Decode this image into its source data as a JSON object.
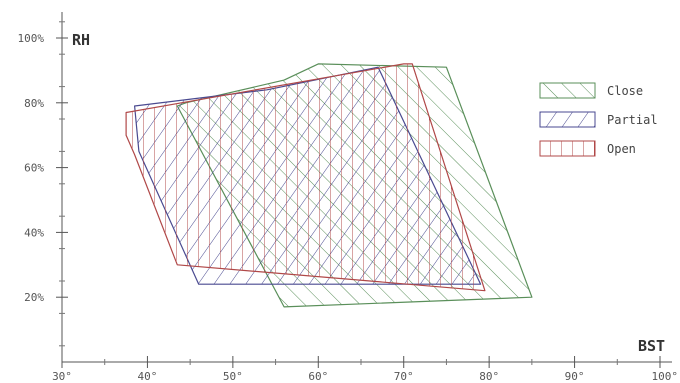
{
  "chart_data": {
    "type": "area",
    "title": "",
    "xlabel": "BST",
    "ylabel": "RH",
    "xlim": [
      30,
      100
    ],
    "ylim": [
      0,
      100
    ],
    "x_ticks": [
      30,
      40,
      50,
      60,
      70,
      80,
      90,
      100
    ],
    "x_tick_labels": [
      "30°",
      "40°",
      "50°",
      "60°",
      "70°",
      "80°",
      "90°",
      "100°"
    ],
    "y_ticks": [
      20,
      40,
      60,
      80,
      100
    ],
    "y_tick_labels": [
      "20%",
      "40%",
      "60%",
      "80%",
      "100%"
    ],
    "grid": false,
    "legend_position": "right",
    "series": [
      {
        "name": "Close",
        "color": "#5a8f5a",
        "hatch": "backslash",
        "polygon": [
          [
            44.5,
            80
          ],
          [
            56,
            87
          ],
          [
            60,
            92
          ],
          [
            75,
            91
          ],
          [
            85,
            20
          ],
          [
            56,
            17
          ],
          [
            43.5,
            79
          ]
        ]
      },
      {
        "name": "Partial",
        "color": "#4a4a90",
        "hatch": "slash",
        "polygon": [
          [
            38.5,
            79
          ],
          [
            54,
            84
          ],
          [
            67,
            91
          ],
          [
            79,
            24
          ],
          [
            46,
            24
          ],
          [
            39,
            65
          ]
        ]
      },
      {
        "name": "Open",
        "color": "#b04848",
        "hatch": "vertical",
        "polygon": [
          [
            37.5,
            77
          ],
          [
            70,
            92
          ],
          [
            71,
            92
          ],
          [
            79.5,
            22
          ],
          [
            43.5,
            30
          ],
          [
            38.5,
            64
          ],
          [
            37.5,
            70
          ]
        ]
      }
    ]
  }
}
